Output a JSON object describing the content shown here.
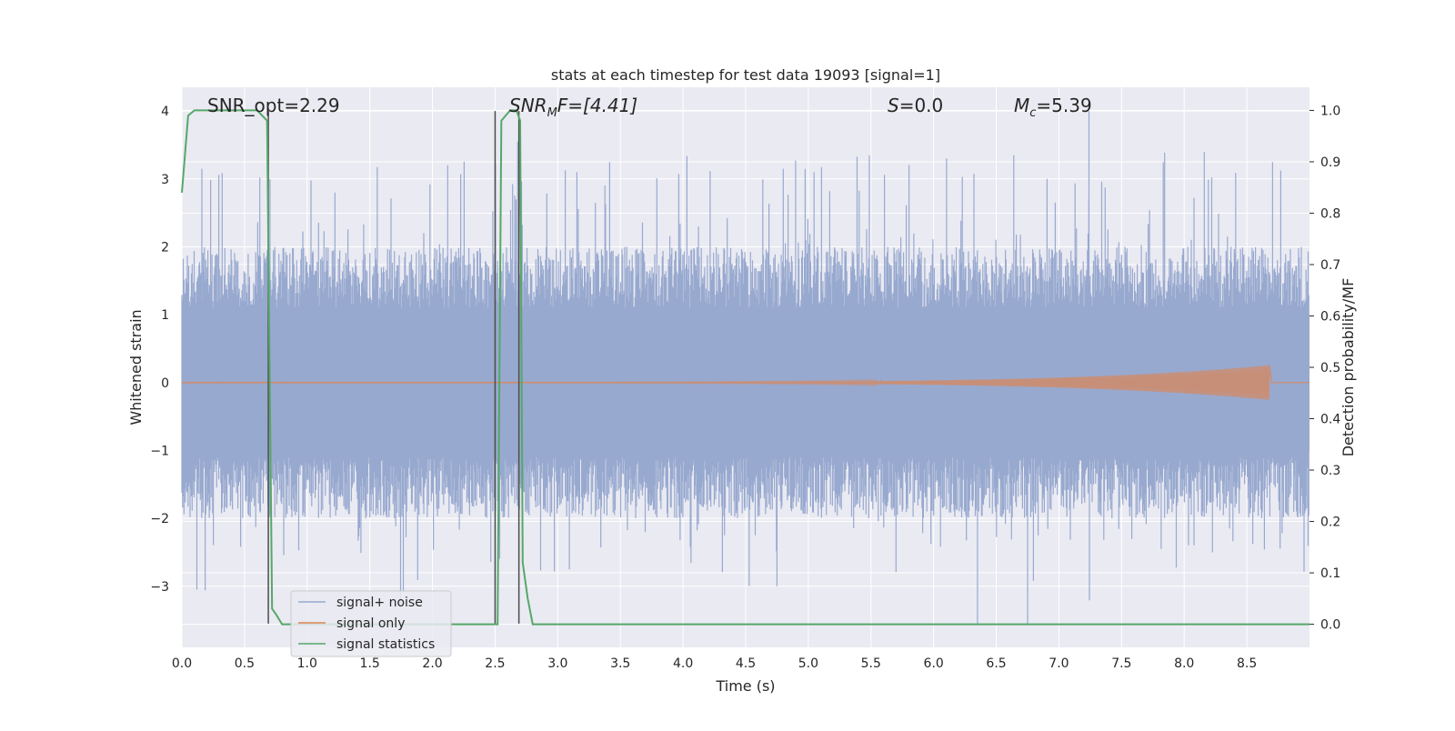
{
  "chart_data": {
    "type": "line",
    "title": "stats at each timestep for test data 19093 [signal=1]",
    "xlabel": "Time (s)",
    "ylabel": "Whitened strain",
    "y2label": "Detection probability/MF",
    "xlim": [
      0.0,
      9.0
    ],
    "ylim": [
      -3.9,
      4.35
    ],
    "y2lim": [
      -0.045,
      1.045
    ],
    "xticks": [
      0.0,
      0.5,
      1.0,
      1.5,
      2.0,
      2.5,
      3.0,
      3.5,
      4.0,
      4.5,
      5.0,
      5.5,
      6.0,
      6.5,
      7.0,
      7.5,
      8.0,
      8.5
    ],
    "xtick_labels": [
      "0.0",
      "0.5",
      "1.0",
      "1.5",
      "2.0",
      "2.5",
      "3.0",
      "3.5",
      "4.0",
      "4.5",
      "5.0",
      "5.5",
      "6.0",
      "6.5",
      "7.0",
      "7.5",
      "8.0",
      "8.5"
    ],
    "yticks": [
      -3,
      -2,
      -1,
      0,
      1,
      2,
      3,
      4
    ],
    "ytick_labels": [
      "−3",
      "−2",
      "−1",
      "0",
      "1",
      "2",
      "3",
      "4"
    ],
    "y2ticks": [
      0.0,
      0.1,
      0.2,
      0.3,
      0.4,
      0.5,
      0.6,
      0.7,
      0.8,
      0.9,
      1.0
    ],
    "y2tick_labels": [
      "0.0",
      "0.1",
      "0.2",
      "0.3",
      "0.4",
      "0.5",
      "0.6",
      "0.7",
      "0.8",
      "0.9",
      "1.0"
    ],
    "grid": true,
    "legend_position": "lower-left",
    "annotations": {
      "snr_opt": "SNR_opt=2.29",
      "snr_mf_main": "SNR",
      "snr_mf_sub": "M",
      "snr_mf_rest": "F=[4.41]",
      "s_main": "S",
      "s_rest": "=0.0",
      "mc_main": "M",
      "mc_sub": "c",
      "mc_rest": "=5.39"
    },
    "series": [
      {
        "name": "signal+ noise",
        "color": "#98a9cf",
        "axis": "left",
        "style": "dense noise",
        "core_amplitude": 1.0,
        "typical_peak": 2.3,
        "max_peak": 4.0,
        "min_trough": -3.55
      },
      {
        "name": "signal only",
        "color": "#dd8452",
        "axis": "left",
        "style": "chirp",
        "start_time": 0.0,
        "end_time": 8.68,
        "end_amplitude": 0.25
      },
      {
        "name": "signal statistics",
        "color": "#55a868",
        "axis": "right",
        "x": [
          0.0,
          0.05,
          0.1,
          0.3,
          0.5,
          0.6,
          0.68,
          0.72,
          0.75,
          0.8,
          2.5,
          2.52,
          2.55,
          2.62,
          2.67,
          2.7,
          2.72,
          2.76,
          2.8,
          7.0,
          9.0
        ],
        "y": [
          0.84,
          0.99,
          1.0,
          1.0,
          1.0,
          1.0,
          0.98,
          0.03,
          0.02,
          0.0,
          0.0,
          0.0,
          0.98,
          1.0,
          1.0,
          0.98,
          0.12,
          0.05,
          0.0,
          0.0,
          0.0
        ]
      }
    ],
    "markers": [
      0.69,
      2.5,
      2.69
    ]
  }
}
